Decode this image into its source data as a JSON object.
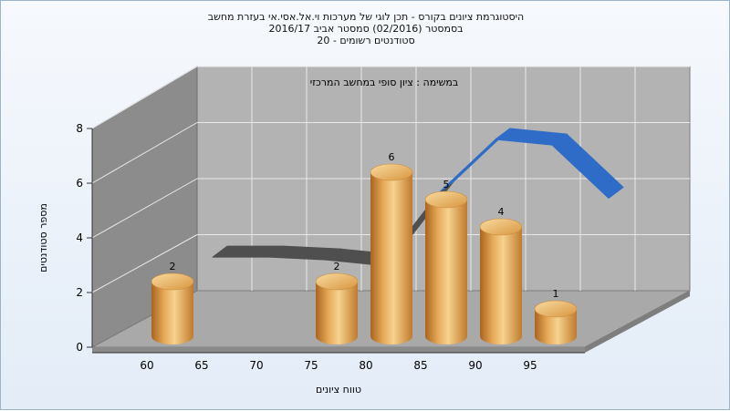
{
  "titles": {
    "line1": "היסטוגרמת ציונים בקורס - תכן לוגי של מערכות וי.אל.אסי.אי בעזרת מחשב",
    "line2": "בסמסטר  (02/2016)  סמסטר אביב 2016/17",
    "line3": "סטודנטים רשומים - 20"
  },
  "chart_data": {
    "type": "bar",
    "subtitle": "במשימה : ציון סופי במחשב המרכזי",
    "xlabel": "טווח ציונים",
    "ylabel": "מספר סטודנטים",
    "x_ticks": [
      "60",
      "65",
      "70",
      "75",
      "80",
      "85",
      "90",
      "95"
    ],
    "y_ticks": [
      "0",
      "2",
      "4",
      "6",
      "8"
    ],
    "ylim": [
      0,
      8
    ],
    "categories": [
      "60",
      "65",
      "70",
      "75",
      "80",
      "85",
      "90",
      "95"
    ],
    "values": [
      2,
      0,
      0,
      2,
      6,
      5,
      4,
      1
    ],
    "data_labels": [
      "2",
      "",
      "",
      "2",
      "6",
      "5",
      "4",
      "1"
    ],
    "curve": {
      "description": "back ribbon curve behind bars",
      "values": [
        1.2,
        1.2,
        1.1,
        0.9,
        3.5,
        5.4,
        5.2,
        3.3
      ],
      "colors": [
        "#4f4f4f",
        "#4f4f4f",
        "#4f4f4f",
        "#4f4f4f",
        "#2f6cc7",
        "#2f6cc7",
        "#2f6cc7",
        "#2f6cc7"
      ]
    },
    "grid": true,
    "colors": {
      "bar_light": "#f6d28e",
      "bar_mid": "#e3a54e",
      "bar_dark": "#a9641e",
      "wall": "#b3b3b3",
      "side_wall": "#8c8c8c",
      "floor": "#a9a9a9",
      "ribbon_blue": "#2f6cc7",
      "ribbon_gray": "#4f4f4f"
    }
  }
}
